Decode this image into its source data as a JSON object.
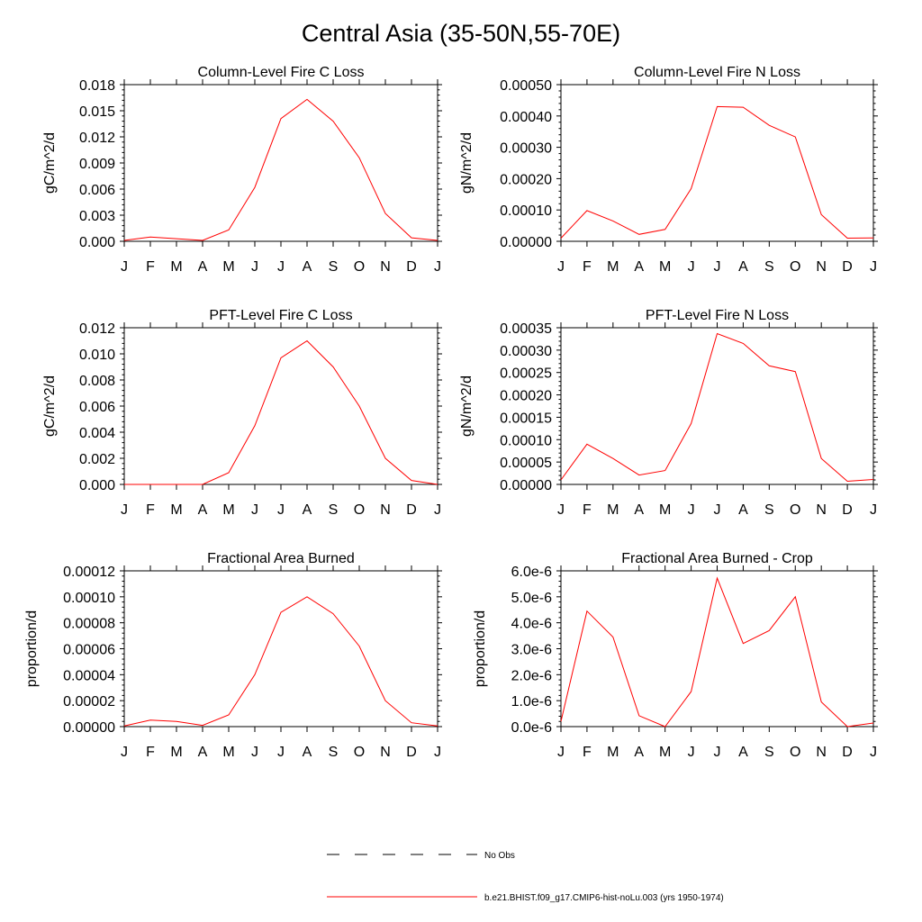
{
  "figure": {
    "title": "Central Asia (35-50N,55-70E)",
    "line_color": "#ff0000",
    "legend": {
      "obs_label": "No Obs",
      "model_label": "b.e21.BHIST.f09_g17.CMIP6-hist-noLu.003 (yrs 1950-1974)"
    }
  },
  "chart_data": [
    {
      "type": "line",
      "title": "Column-Level Fire C Loss",
      "ylabel": "gC/m^2/d",
      "categories": [
        "J",
        "F",
        "M",
        "A",
        "M",
        "J",
        "J",
        "A",
        "S",
        "O",
        "N",
        "D",
        "J"
      ],
      "ylim": [
        0,
        0.018
      ],
      "yticks": [
        "0.000",
        "0.003",
        "0.006",
        "0.009",
        "0.012",
        "0.015",
        "0.018"
      ],
      "values": [
        0.0001,
        0.0005,
        0.0003,
        0.0001,
        0.0013,
        0.0062,
        0.0141,
        0.0163,
        0.0138,
        0.0096,
        0.0032,
        0.0004,
        0.0001
      ],
      "grid": false
    },
    {
      "type": "line",
      "title": "Column-Level Fire N Loss",
      "ylabel": "gN/m^2/d",
      "categories": [
        "J",
        "F",
        "M",
        "A",
        "M",
        "J",
        "J",
        "A",
        "S",
        "O",
        "N",
        "D",
        "J"
      ],
      "ylim": [
        0,
        0.0005
      ],
      "yticks": [
        "0.00000",
        "0.00010",
        "0.00020",
        "0.00030",
        "0.00040",
        "0.00050"
      ],
      "values": [
        1e-05,
        9.8e-05,
        6.5e-05,
        2.2e-05,
        3.8e-05,
        0.000168,
        0.00043,
        0.000428,
        0.00037,
        0.000333,
        8.5e-05,
        1e-05,
        1.1e-05
      ],
      "grid": false
    },
    {
      "type": "line",
      "title": "PFT-Level Fire C Loss",
      "ylabel": "gC/m^2/d",
      "categories": [
        "J",
        "F",
        "M",
        "A",
        "M",
        "J",
        "J",
        "A",
        "S",
        "O",
        "N",
        "D",
        "J"
      ],
      "ylim": [
        0,
        0.012
      ],
      "yticks": [
        "0.000",
        "0.002",
        "0.004",
        "0.006",
        "0.008",
        "0.010",
        "0.012"
      ],
      "values": [
        0.0,
        0.0,
        0.0,
        0.0,
        0.0009,
        0.0045,
        0.0097,
        0.011,
        0.009,
        0.006,
        0.002,
        0.0003,
        0.0
      ],
      "grid": false
    },
    {
      "type": "line",
      "title": "PFT-Level Fire N Loss",
      "ylabel": "gN/m^2/d",
      "categories": [
        "J",
        "F",
        "M",
        "A",
        "M",
        "J",
        "J",
        "A",
        "S",
        "O",
        "N",
        "D",
        "J"
      ],
      "ylim": [
        0,
        0.00035
      ],
      "yticks": [
        "0.00000",
        "0.00005",
        "0.00010",
        "0.00015",
        "0.00020",
        "0.00025",
        "0.00030",
        "0.00035"
      ],
      "values": [
        1e-05,
        9e-05,
        5.8e-05,
        2.1e-05,
        3.1e-05,
        0.000136,
        0.000337,
        0.000315,
        0.000265,
        0.000252,
        5.8e-05,
        7e-06,
        1.1e-05
      ],
      "grid": false
    },
    {
      "type": "line",
      "title": "Fractional Area Burned",
      "ylabel": "proportion/d",
      "categories": [
        "J",
        "F",
        "M",
        "A",
        "M",
        "J",
        "J",
        "A",
        "S",
        "O",
        "N",
        "D",
        "J"
      ],
      "ylim": [
        0,
        0.00012
      ],
      "yticks": [
        "0.00000",
        "0.00002",
        "0.00004",
        "0.00006",
        "0.00008",
        "0.00010",
        "0.00012"
      ],
      "values": [
        5e-07,
        5e-06,
        4e-06,
        1e-06,
        9e-06,
        4e-05,
        8.8e-05,
        0.0001,
        8.7e-05,
        6.2e-05,
        2e-05,
        3e-06,
        5e-07
      ],
      "grid": false
    },
    {
      "type": "line",
      "title": "Fractional Area Burned - Crop",
      "ylabel": "proportion/d",
      "categories": [
        "J",
        "F",
        "M",
        "A",
        "M",
        "J",
        "J",
        "A",
        "S",
        "O",
        "N",
        "D",
        "J"
      ],
      "ylim": [
        0,
        6e-06
      ],
      "yticks": [
        "0.0e-6",
        "1.0e-6",
        "2.0e-6",
        "3.0e-6",
        "4.0e-6",
        "5.0e-6",
        "6.0e-6"
      ],
      "values": [
        2e-07,
        4.45e-06,
        3.45e-06,
        4.2e-07,
        0.0,
        1.35e-06,
        5.72e-06,
        3.2e-06,
        3.7e-06,
        5e-06,
        9.5e-07,
        0.0,
        1.4e-07
      ],
      "grid": false
    }
  ]
}
